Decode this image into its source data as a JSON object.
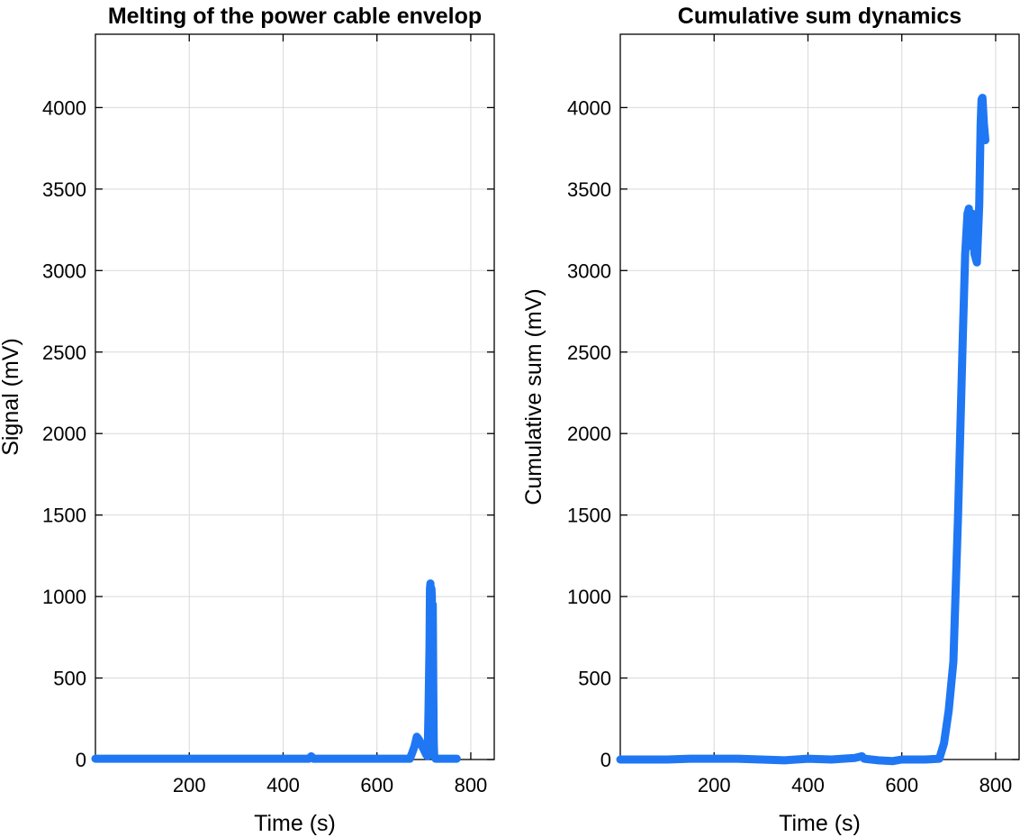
{
  "chart_data": [
    {
      "type": "line",
      "title": "Melting of the power cable envelop",
      "xlabel": "Time (s)",
      "ylabel": "Signal (mV)",
      "xlim": [
        0,
        850
      ],
      "ylim": [
        0,
        4450
      ],
      "xticks": [
        200,
        400,
        600,
        800
      ],
      "yticks": [
        0,
        500,
        1000,
        1500,
        2000,
        2500,
        3000,
        3500,
        4000
      ],
      "grid": true,
      "color": "#1f77f4",
      "series": [
        {
          "x": [
            0,
            100,
            200,
            300,
            400,
            455,
            460,
            465,
            500,
            600,
            670,
            675,
            680,
            685,
            690,
            695,
            700,
            705,
            708,
            710,
            712,
            713,
            714,
            715,
            716,
            717,
            718,
            719,
            720,
            721,
            722,
            725,
            730,
            770
          ],
          "y": [
            5,
            5,
            5,
            5,
            5,
            5,
            20,
            5,
            5,
            5,
            5,
            40,
            80,
            140,
            120,
            90,
            60,
            30,
            20,
            300,
            700,
            1050,
            1080,
            900,
            1050,
            1000,
            600,
            950,
            500,
            100,
            20,
            5,
            5,
            5
          ]
        }
      ]
    },
    {
      "type": "line",
      "title": "Cumulative sum dynamics",
      "xlabel": "Time (s)",
      "ylabel": "Cumulative sum (mV)",
      "xlim": [
        0,
        850
      ],
      "ylim": [
        0,
        4450
      ],
      "xticks": [
        200,
        400,
        600,
        800
      ],
      "yticks": [
        0,
        500,
        1000,
        1500,
        2000,
        2500,
        3000,
        3500,
        4000
      ],
      "grid": true,
      "color": "#1f77f4",
      "series": [
        {
          "x": [
            0,
            100,
            150,
            200,
            250,
            300,
            350,
            400,
            450,
            500,
            515,
            520,
            550,
            580,
            600,
            650,
            680,
            690,
            700,
            710,
            720,
            730,
            735,
            740,
            743,
            745,
            748,
            750,
            755,
            760,
            765,
            768,
            770,
            772,
            775,
            778
          ],
          "y": [
            0,
            0,
            5,
            5,
            5,
            0,
            -5,
            5,
            0,
            10,
            20,
            5,
            -5,
            -10,
            0,
            0,
            5,
            100,
            300,
            600,
            1500,
            2600,
            3100,
            3350,
            3380,
            3200,
            3150,
            3350,
            3100,
            3050,
            3400,
            3900,
            4050,
            4060,
            3900,
            3800
          ]
        }
      ]
    }
  ]
}
